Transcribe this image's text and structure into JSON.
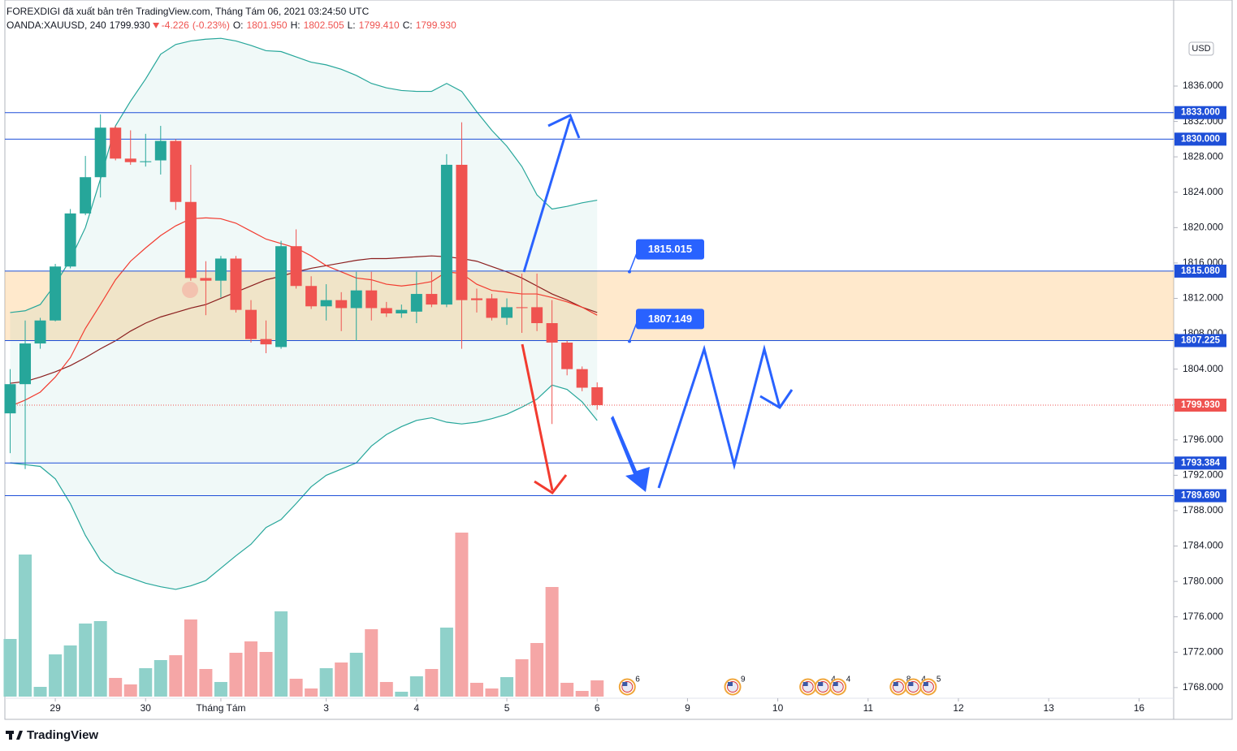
{
  "header": {
    "publisher": "FOREXDIGI đã xuất bản trên TradingView.com, Tháng Tám 06, 2021 03:24:50 UTC",
    "quote": [
      {
        "text": "OANDA:XAUUSD, 240",
        "color": "#131722"
      },
      {
        "text": "1799.930",
        "color": "#131722"
      },
      {
        "text": "-4.226",
        "color": "#ef5350"
      },
      {
        "text": "(-0.23%)",
        "color": "#ef5350"
      },
      {
        "text": "O:",
        "color": "#131722"
      },
      {
        "text": "1801.950",
        "color": "#ef5350"
      },
      {
        "text": "H:",
        "color": "#131722"
      },
      {
        "text": "1802.505",
        "color": "#ef5350"
      },
      {
        "text": "L:",
        "color": "#131722"
      },
      {
        "text": "1799.410",
        "color": "#ef5350"
      },
      {
        "text": "C:",
        "color": "#131722"
      },
      {
        "text": "1799.930",
        "color": "#ef5350"
      }
    ]
  },
  "brand": "TradingView",
  "chart_data": {
    "type": "candlestick",
    "currency": "USD",
    "up_color": "#26a69a",
    "down_color": "#ef5350",
    "up_volume_color": "#8fd1ca",
    "down_volume_color": "#f5a6a6",
    "grid": false,
    "xlim": [
      -0.35,
      77.3
    ],
    "xticks": [
      {
        "value": 3,
        "label": "29"
      },
      {
        "value": 9,
        "label": "30"
      },
      {
        "value": 14,
        "label": "Tháng Tám"
      },
      {
        "value": 21,
        "label": "3"
      },
      {
        "value": 27,
        "label": "4"
      },
      {
        "value": 33,
        "label": "5"
      },
      {
        "value": 39,
        "label": "6"
      },
      {
        "value": 45,
        "label": "9"
      },
      {
        "value": 51,
        "label": "10"
      },
      {
        "value": 57,
        "label": "11"
      },
      {
        "value": 63,
        "label": "12"
      },
      {
        "value": 69,
        "label": "13"
      },
      {
        "value": 75,
        "label": "16"
      }
    ],
    "ylim": [
      1764.5,
      1841.6
    ],
    "yticks": [
      {
        "value": 1768,
        "label": "1768.000"
      },
      {
        "value": 1772,
        "label": "1772.000"
      },
      {
        "value": 1776,
        "label": "1776.000"
      },
      {
        "value": 1780,
        "label": "1780.000"
      },
      {
        "value": 1784,
        "label": "1784.000"
      },
      {
        "value": 1788,
        "label": "1788.000"
      },
      {
        "value": 1792,
        "label": "1792.000"
      },
      {
        "value": 1796,
        "label": "1796.000"
      },
      {
        "value": 1800,
        "label": "1800.000"
      },
      {
        "value": 1804,
        "label": "1804.000"
      },
      {
        "value": 1808,
        "label": "1808.000"
      },
      {
        "value": 1812,
        "label": "1812.000"
      },
      {
        "value": 1816,
        "label": "1816.000"
      },
      {
        "value": 1820,
        "label": "1820.000"
      },
      {
        "value": 1824,
        "label": "1824.000"
      },
      {
        "value": 1828,
        "label": "1828.000"
      },
      {
        "value": 1832,
        "label": "1832.000"
      },
      {
        "value": 1836,
        "label": "1836.000"
      }
    ],
    "open": [
      1799.0,
      1802.3,
      1806.9,
      1809.5,
      1815.6,
      1821.6,
      1825.7,
      1831.3,
      1827.8,
      1827.4,
      1827.6,
      1829.8,
      1822.9,
      1814.3,
      1814.0,
      1816.5,
      1810.7,
      1807.4,
      1806.5,
      1817.9,
      1813.4,
      1811.1,
      1811.8,
      1810.9,
      1812.9,
      1810.9,
      1810.3,
      1810.5,
      1812.5,
      1811.3,
      1827.1,
      1812.0,
      1812.0,
      1809.8,
      1811.0,
      1811.0,
      1809.2,
      1807.0,
      1804.0,
      1801.95
    ],
    "high": [
      1804.0,
      1809.5,
      1809.8,
      1815.9,
      1822.1,
      1828.1,
      1832.8,
      1831.5,
      1831.0,
      1830.6,
      1831.5,
      1830.0,
      1827.1,
      1816.2,
      1816.8,
      1816.8,
      1811.8,
      1809.5,
      1818.5,
      1819.8,
      1814.5,
      1813.6,
      1812.7,
      1815.0,
      1815.0,
      1811.6,
      1811.3,
      1815.0,
      1815.0,
      1828.3,
      1831.9,
      1813.1,
      1812.5,
      1812.0,
      1814.8,
      1814.8,
      1811.8,
      1807.2,
      1804.3,
      1802.505
    ],
    "low": [
      1794.5,
      1792.7,
      1806.3,
      1809.4,
      1815.4,
      1821.4,
      1823.4,
      1827.6,
      1827.1,
      1826.9,
      1826.0,
      1822.0,
      1814.0,
      1810.1,
      1812.1,
      1810.4,
      1807.0,
      1805.8,
      1806.3,
      1813.1,
      1810.8,
      1809.5,
      1808.3,
      1807.2,
      1809.5,
      1809.9,
      1809.8,
      1809.2,
      1811.0,
      1811.0,
      1806.3,
      1810.4,
      1809.5,
      1809.0,
      1808.1,
      1808.3,
      1797.8,
      1803.3,
      1801.5,
      1799.41
    ],
    "close": [
      1802.3,
      1806.9,
      1809.5,
      1815.6,
      1821.6,
      1825.7,
      1831.3,
      1827.8,
      1827.4,
      1827.5,
      1829.8,
      1822.9,
      1814.3,
      1814.0,
      1816.5,
      1810.7,
      1807.4,
      1806.8,
      1817.9,
      1813.4,
      1811.1,
      1811.8,
      1810.9,
      1812.9,
      1810.9,
      1810.3,
      1810.7,
      1812.5,
      1811.3,
      1827.1,
      1811.8,
      1811.8,
      1809.8,
      1811.0,
      1810.9,
      1809.2,
      1807.0,
      1804.0,
      1801.9,
      1799.93
    ],
    "volume": [
      71,
      175,
      12,
      52,
      63,
      90,
      93,
      23,
      15,
      35,
      45,
      51,
      95,
      34,
      18,
      54,
      68,
      55,
      105,
      22,
      10,
      35,
      42,
      54,
      83,
      18,
      6,
      25,
      34,
      85,
      202,
      17,
      10,
      24,
      46,
      66,
      135,
      17,
      7,
      20
    ],
    "bands": {
      "color": "#26a69a",
      "fill": "rgba(38,166,154,0.07)",
      "upper": [
        1810.4,
        1810.6,
        1811.3,
        1813.6,
        1816.4,
        1820.0,
        1825.5,
        1831.5,
        1834.3,
        1836.8,
        1839.6,
        1840.7,
        1841.1,
        1841.3,
        1841.4,
        1841.1,
        1840.6,
        1840.0,
        1839.9,
        1839.3,
        1838.7,
        1838.4,
        1837.9,
        1837.2,
        1836.3,
        1835.8,
        1835.5,
        1835.4,
        1835.4,
        1836.3,
        1835.4,
        1833.1,
        1831.0,
        1829.2,
        1826.9,
        1823.7,
        1822.1,
        1822.4,
        1822.8,
        1823.1
      ],
      "lower": [
        1793.4,
        1793.2,
        1793.0,
        1791.6,
        1788.8,
        1785.2,
        1782.4,
        1781.0,
        1780.4,
        1779.8,
        1779.4,
        1779.1,
        1779.5,
        1780.1,
        1781.5,
        1782.9,
        1784.2,
        1786.1,
        1787.0,
        1788.8,
        1790.7,
        1792.0,
        1792.7,
        1793.4,
        1795.3,
        1796.6,
        1797.5,
        1798.2,
        1798.5,
        1798.0,
        1797.8,
        1798.0,
        1798.4,
        1798.9,
        1799.7,
        1800.6,
        1802.2,
        1801.7,
        1800.3,
        1798.2
      ]
    },
    "series": [
      {
        "color": "#8b1e1e",
        "values": [
          1802.4,
          1802.6,
          1803.1,
          1803.7,
          1804.4,
          1805.3,
          1806.3,
          1807.2,
          1808.3,
          1809.2,
          1809.9,
          1810.4,
          1810.9,
          1811.3,
          1812.0,
          1812.7,
          1813.4,
          1814.1,
          1814.5,
          1815.0,
          1815.4,
          1815.7,
          1816.0,
          1816.3,
          1816.5,
          1816.5,
          1816.6,
          1816.7,
          1816.8,
          1816.7,
          1816.5,
          1816.2,
          1815.6,
          1815.0,
          1814.3,
          1813.4,
          1812.5,
          1811.8,
          1811.0,
          1810.4
        ]
      },
      {
        "color": "#f23b2f",
        "values": [
          1799.8,
          1800.5,
          1801.4,
          1803.1,
          1805.3,
          1808.6,
          1811.3,
          1814.1,
          1816.2,
          1817.7,
          1819.1,
          1820.2,
          1821.0,
          1821.1,
          1821.0,
          1820.5,
          1819.6,
          1818.7,
          1818.2,
          1817.7,
          1816.8,
          1815.7,
          1815.0,
          1814.3,
          1814.1,
          1813.6,
          1813.4,
          1813.6,
          1813.9,
          1815.0,
          1814.8,
          1813.6,
          1812.9,
          1812.7,
          1812.5,
          1812.5,
          1812.1,
          1811.6,
          1811.0,
          1810.1
        ]
      }
    ],
    "levels": [
      {
        "value": 1833,
        "label": "1833.000"
      },
      {
        "value": 1830,
        "label": "1830.000"
      },
      {
        "value": 1815.08,
        "label": "1815.080"
      },
      {
        "value": 1807.225,
        "label": "1807.225"
      },
      {
        "value": 1793.384,
        "label": "1793.384"
      },
      {
        "value": 1789.69,
        "label": "1789.690"
      }
    ],
    "level_color": "#1e4fd8",
    "zone": {
      "top": 1815.08,
      "bottom": 1807.225,
      "color": "rgba(255,198,120,0.38)"
    },
    "last_price": {
      "value": 1799.93,
      "label": "1799.930",
      "color": "#ef5350"
    },
    "callouts": [
      {
        "value": 1815.015,
        "label": "1815.015"
      },
      {
        "value": 1807.149,
        "label": "1807.149"
      }
    ],
    "events": [
      {
        "x": 41,
        "label": "6"
      },
      {
        "x": 48,
        "label": "9"
      },
      {
        "x": 53,
        "label": null
      },
      {
        "x": 54,
        "label": "4"
      },
      {
        "x": 55,
        "label": "4"
      },
      {
        "x": 59,
        "label": "8"
      },
      {
        "x": 60,
        "label": "4"
      },
      {
        "x": 61,
        "label": "5"
      }
    ]
  }
}
